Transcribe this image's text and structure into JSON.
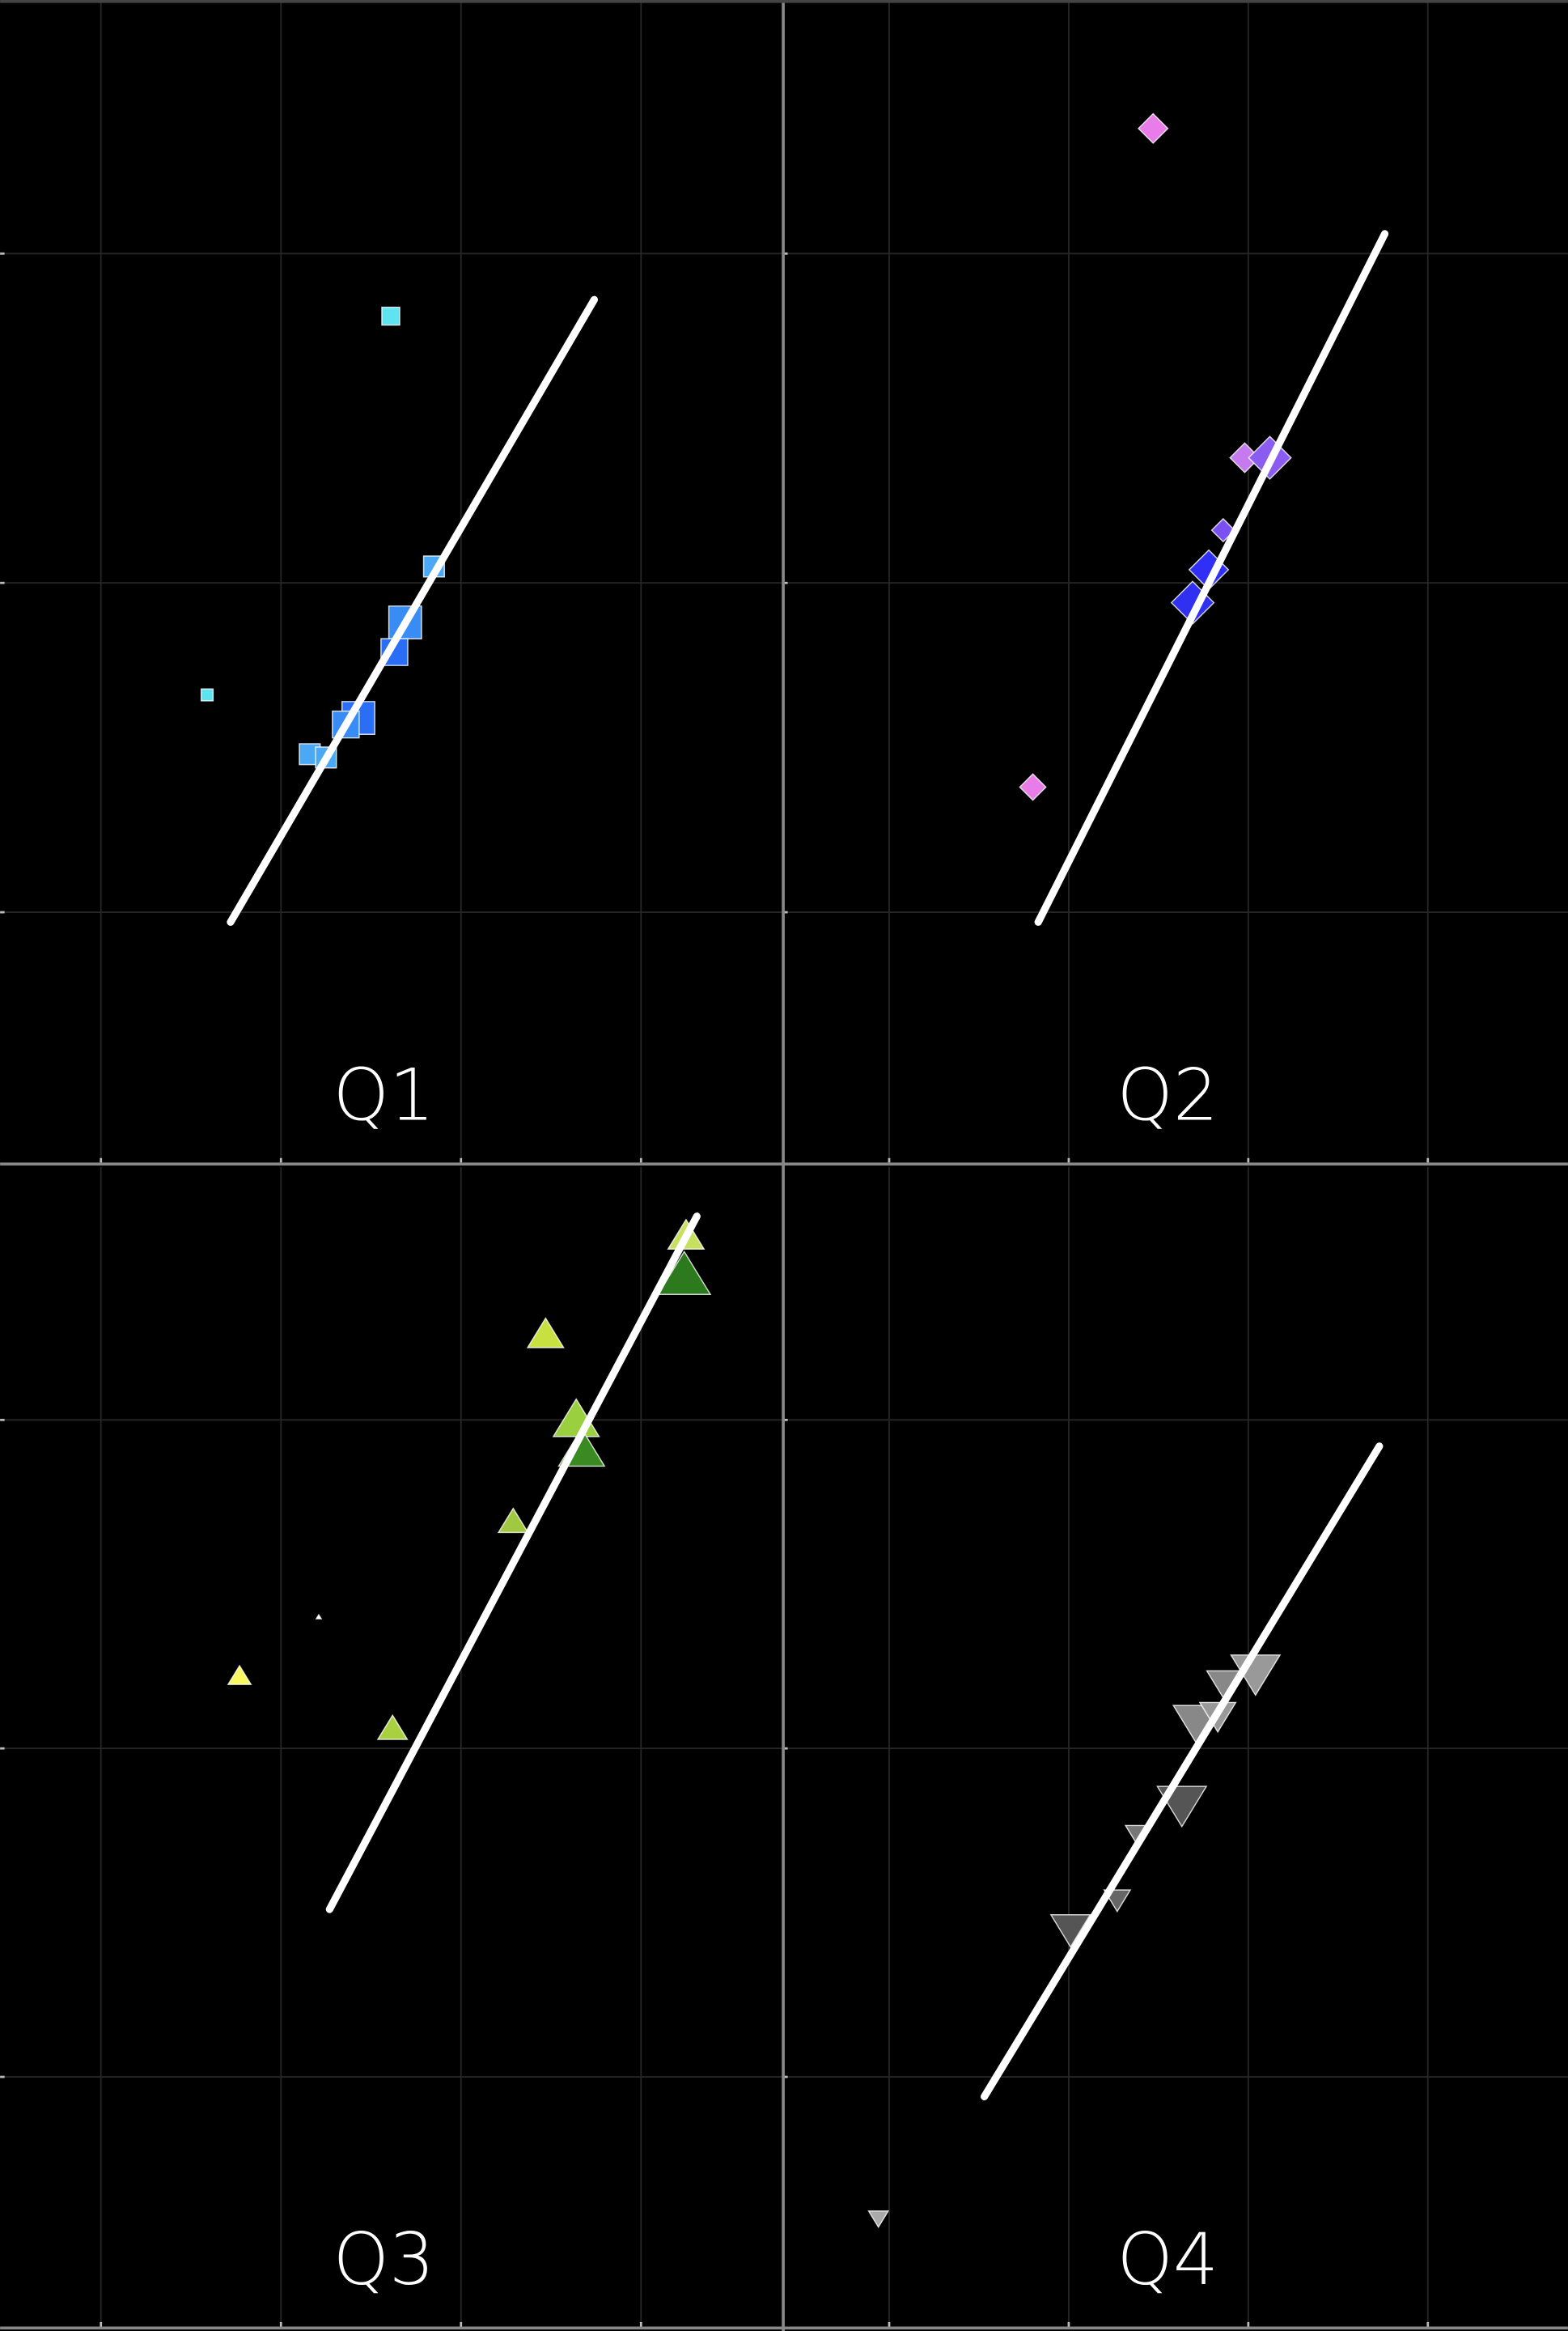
{
  "chart_data": [
    {
      "type": "scatter",
      "title": "Q1",
      "marker": "square",
      "grid": true,
      "xlim": [
        -0.56,
        3.79
      ],
      "ylim": [
        -0.76,
        2.77
      ],
      "xticks": [
        0,
        1,
        2,
        3
      ],
      "yticks": [
        0,
        1,
        2
      ],
      "x": [
        1.61,
        0.59,
        1.85,
        1.69,
        1.63,
        1.43,
        1.36,
        1.16,
        1.25
      ],
      "y": [
        1.81,
        0.66,
        1.05,
        0.88,
        0.79,
        0.59,
        0.57,
        0.48,
        0.47
      ],
      "sizes": [
        12,
        8,
        14,
        22,
        18,
        22,
        18,
        14,
        14
      ],
      "colors": [
        "#5ee3f0",
        "#5ee3f0",
        "#4aa8f5",
        "#3a8cf5",
        "#2a6ef5",
        "#2a6ef5",
        "#3a8cf5",
        "#4aa8f5",
        "#4aa8f5"
      ],
      "fit": {
        "x": [
          0.72,
          2.74
        ],
        "y": [
          -0.03,
          1.86
        ],
        "color": "#ffffff"
      }
    },
    {
      "type": "scatter",
      "title": "Q2",
      "marker": "diamond",
      "grid": true,
      "xlim": [
        -0.59,
        3.78
      ],
      "ylim": [
        -0.76,
        2.77
      ],
      "xticks": [
        0,
        1,
        2,
        3
      ],
      "yticks": [
        0,
        1,
        2
      ],
      "x": [
        1.47,
        0.8,
        1.98,
        2.12,
        1.86,
        1.78,
        1.69
      ],
      "y": [
        2.38,
        0.38,
        1.38,
        1.38,
        1.16,
        1.04,
        0.94
      ],
      "sizes": [
        18,
        16,
        18,
        26,
        14,
        24,
        26
      ],
      "colors": [
        "#e87ce8",
        "#e87ce8",
        "#c67af0",
        "#8a5cf0",
        "#7a50f0",
        "#2f2ff5",
        "#3030f0"
      ],
      "fit": {
        "x": [
          0.83,
          2.76
        ],
        "y": [
          -0.03,
          2.06
        ],
        "color": "#ffffff"
      }
    },
    {
      "type": "scatter",
      "title": "Q3",
      "marker": "triangle-up",
      "grid": true,
      "xlim": [
        -0.56,
        3.79
      ],
      "ylim": [
        -0.76,
        2.77
      ],
      "xticks": [
        0,
        1,
        2,
        3
      ],
      "yticks": [
        0,
        1,
        2
      ],
      "x": [
        2.47,
        3.25,
        3.24,
        2.64,
        2.67,
        2.29,
        1.21,
        0.77,
        1.62
      ],
      "y": [
        2.26,
        2.56,
        2.44,
        2.0,
        1.91,
        1.69,
        1.4,
        1.22,
        1.06
      ],
      "sizes": [
        22,
        22,
        32,
        28,
        28,
        18,
        3,
        14,
        18
      ],
      "colors": [
        "#c8e040",
        "#c8e060",
        "#2d7a1e",
        "#9ad040",
        "#3a8a22",
        "#a0c840",
        "#ffffff",
        "#f8f860",
        "#a8d040"
      ],
      "fit": {
        "x": [
          1.27,
          3.31
        ],
        "y": [
          0.51,
          2.62
        ],
        "color": "#ffffff"
      }
    },
    {
      "type": "scatter",
      "title": "Q4",
      "marker": "triangle-down",
      "grid": true,
      "xlim": [
        -0.59,
        3.78
      ],
      "ylim": [
        -0.76,
        2.77
      ],
      "xticks": [
        0,
        1,
        2,
        3
      ],
      "yticks": [
        0,
        1,
        2
      ],
      "x": [
        -0.06,
        1.01,
        1.27,
        1.38,
        1.63,
        1.71,
        1.83,
        1.86,
        2.04
      ],
      "y": [
        -0.43,
        0.45,
        0.54,
        0.74,
        0.83,
        1.08,
        1.1,
        1.2,
        1.23
      ],
      "sizes": [
        12,
        24,
        16,
        14,
        30,
        28,
        22,
        20,
        30
      ],
      "colors": [
        "#aaaaaa",
        "#555555",
        "#666666",
        "#777777",
        "#555555",
        "#888888",
        "#999999",
        "#888888",
        "#999999"
      ],
      "fit": {
        "x": [
          0.53,
          2.73
        ],
        "y": [
          -0.06,
          1.92
        ],
        "color": "#ffffff"
      }
    }
  ]
}
